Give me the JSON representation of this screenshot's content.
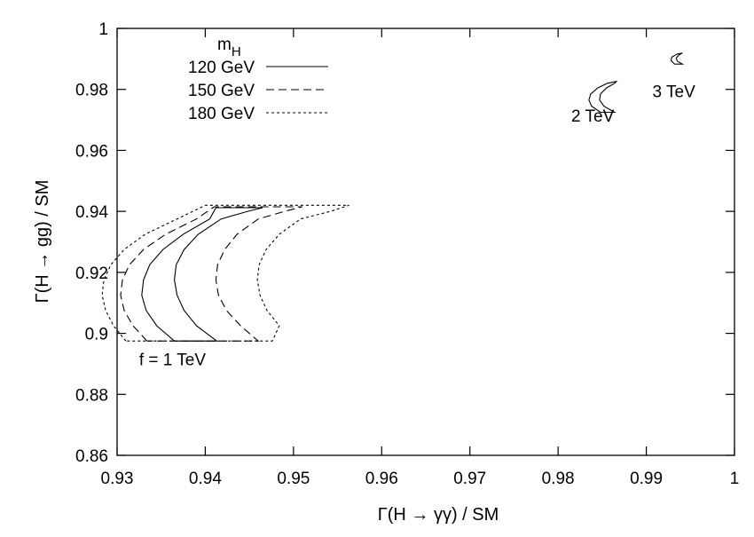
{
  "chart_data": {
    "type": "line",
    "title": "",
    "xlabel": "Γ(H → γγ) / SM",
    "ylabel": "Γ(H → gg) / SM",
    "xlim": [
      0.93,
      1.0
    ],
    "ylim": [
      0.86,
      1.0
    ],
    "xticks": [
      0.93,
      0.94,
      0.95,
      0.96,
      0.97,
      0.98,
      0.99,
      1
    ],
    "xtick_labels": [
      "0.93",
      "0.94",
      "0.95",
      "0.96",
      "0.97",
      "0.98",
      "0.99",
      "1"
    ],
    "yticks": [
      0.86,
      0.88,
      0.9,
      0.92,
      0.94,
      0.96,
      0.98,
      1
    ],
    "ytick_labels": [
      "0.86",
      "0.88",
      "0.9",
      "0.92",
      "0.94",
      "0.96",
      "0.98",
      "1"
    ],
    "grid": false,
    "legend": {
      "title_main": "m",
      "title_sub": "H",
      "placement": "top-left",
      "entries": [
        {
          "label": "120 GeV",
          "style": "solid"
        },
        {
          "label": "150 GeV",
          "style": "dashed"
        },
        {
          "label": "180 GeV",
          "style": "dotted"
        }
      ]
    },
    "annotations": [
      {
        "text": "f = 1 TeV",
        "x": 0.9325,
        "y": 0.8895
      },
      {
        "text": "2 TeV",
        "x": 0.9815,
        "y": 0.9695
      },
      {
        "text": "3 TeV",
        "x": 0.9907,
        "y": 0.9775
      }
    ],
    "series": [
      {
        "name": "120 GeV",
        "style": "solid",
        "contours": [
          [
            [
              0.9365,
              0.8975
            ],
            [
              0.9345,
              0.9025
            ],
            [
              0.9333,
              0.9075
            ],
            [
              0.9328,
              0.9125
            ],
            [
              0.933,
              0.9175
            ],
            [
              0.9337,
              0.9225
            ],
            [
              0.9352,
              0.9275
            ],
            [
              0.9375,
              0.9325
            ],
            [
              0.9405,
              0.9375
            ],
            [
              0.9412,
              0.9412
            ],
            [
              0.9465,
              0.9412
            ],
            [
              0.9448,
              0.94
            ],
            [
              0.9418,
              0.9375
            ],
            [
              0.9392,
              0.9325
            ],
            [
              0.9376,
              0.9275
            ],
            [
              0.9367,
              0.9225
            ],
            [
              0.9365,
              0.9175
            ],
            [
              0.9368,
              0.9125
            ],
            [
              0.9376,
              0.9075
            ],
            [
              0.939,
              0.9025
            ],
            [
              0.9413,
              0.8975
            ],
            [
              0.9365,
              0.8975
            ]
          ],
          [
            [
              0.9848,
              0.9725
            ],
            [
              0.9838,
              0.9745
            ],
            [
              0.9835,
              0.9765
            ],
            [
              0.9837,
              0.9785
            ],
            [
              0.9845,
              0.9805
            ],
            [
              0.9856,
              0.982
            ],
            [
              0.9866,
              0.9826
            ],
            [
              0.9864,
              0.982
            ],
            [
              0.9855,
              0.9805
            ],
            [
              0.9848,
              0.9785
            ],
            [
              0.9847,
              0.9765
            ],
            [
              0.9852,
              0.9745
            ],
            [
              0.9864,
              0.9725
            ],
            [
              0.9848,
              0.9725
            ]
          ],
          [
            [
              0.9932,
              0.9883
            ],
            [
              0.9928,
              0.9895
            ],
            [
              0.9929,
              0.9906
            ],
            [
              0.9935,
              0.9916
            ],
            [
              0.9941,
              0.9919
            ],
            [
              0.9937,
              0.9913
            ],
            [
              0.9934,
              0.9903
            ],
            [
              0.9935,
              0.9893
            ],
            [
              0.9941,
              0.9883
            ],
            [
              0.9932,
              0.9883
            ]
          ]
        ]
      },
      {
        "name": "150 GeV",
        "style": "dashed",
        "contours": [
          [
            [
              0.9334,
              0.8975
            ],
            [
              0.9318,
              0.9025
            ],
            [
              0.9308,
              0.9075
            ],
            [
              0.9304,
              0.9125
            ],
            [
              0.9306,
              0.9175
            ],
            [
              0.9314,
              0.9225
            ],
            [
              0.933,
              0.9275
            ],
            [
              0.9355,
              0.9325
            ],
            [
              0.939,
              0.9375
            ],
            [
              0.941,
              0.9415
            ],
            [
              0.951,
              0.9415
            ],
            [
              0.949,
              0.94
            ],
            [
              0.946,
              0.9375
            ],
            [
              0.9436,
              0.9325
            ],
            [
              0.9422,
              0.9275
            ],
            [
              0.9414,
              0.9225
            ],
            [
              0.9412,
              0.9175
            ],
            [
              0.9415,
              0.9125
            ],
            [
              0.9424,
              0.9075
            ],
            [
              0.944,
              0.9025
            ],
            [
              0.946,
              0.8975
            ],
            [
              0.9334,
              0.8975
            ]
          ]
        ]
      },
      {
        "name": "180 GeV",
        "style": "dotted",
        "contours": [
          [
            [
              0.931,
              0.8975
            ],
            [
              0.9296,
              0.9025
            ],
            [
              0.9287,
              0.9075
            ],
            [
              0.9283,
              0.9125
            ],
            [
              0.9285,
              0.9175
            ],
            [
              0.9293,
              0.9225
            ],
            [
              0.9308,
              0.9275
            ],
            [
              0.9332,
              0.9325
            ],
            [
              0.9368,
              0.9375
            ],
            [
              0.94,
              0.942
            ],
            [
              0.9563,
              0.942
            ],
            [
              0.9542,
              0.94
            ],
            [
              0.9508,
              0.9375
            ],
            [
              0.9484,
              0.9325
            ],
            [
              0.9469,
              0.9275
            ],
            [
              0.9461,
              0.9225
            ],
            [
              0.9459,
              0.9175
            ],
            [
              0.9462,
              0.9125
            ],
            [
              0.947,
              0.9075
            ],
            [
              0.9484,
              0.9025
            ],
            [
              0.9476,
              0.8975
            ],
            [
              0.931,
              0.8975
            ]
          ]
        ]
      }
    ]
  }
}
